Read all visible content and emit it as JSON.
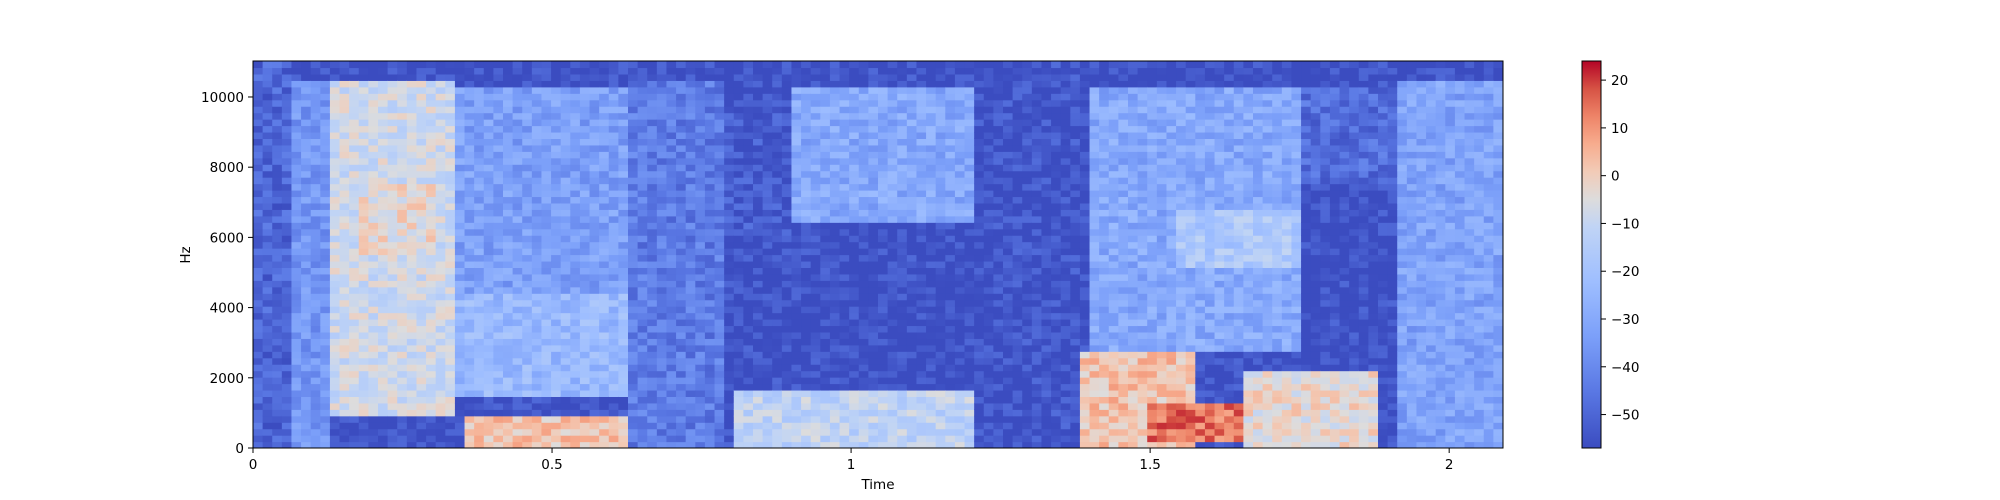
{
  "chart_data": {
    "type": "heatmap",
    "title": "",
    "xlabel": "Time",
    "ylabel": "Hz",
    "xlim": [
      0,
      2.09
    ],
    "ylim": [
      0,
      11025
    ],
    "x_ticks": [
      0,
      0.5,
      1,
      1.5,
      2
    ],
    "x_tick_labels": [
      "0",
      "0.5",
      "1",
      "1.5",
      "2"
    ],
    "y_ticks": [
      0,
      2000,
      4000,
      6000,
      8000,
      10000
    ],
    "y_tick_labels": [
      "0",
      "2000",
      "4000",
      "6000",
      "8000",
      "10000"
    ],
    "colormap": "coolwarm",
    "colorbar": {
      "vmin": -57,
      "vmax": 24,
      "ticks": [
        -50,
        -40,
        -30,
        -20,
        -10,
        0,
        10,
        20
      ],
      "tick_labels": [
        "−50",
        "−40",
        "−30",
        "−20",
        "−10",
        "0",
        "10",
        "20"
      ]
    },
    "regions_db": [
      {
        "t": [
          0.0,
          0.06
        ],
        "f": [
          0,
          11025
        ],
        "db": -50
      },
      {
        "t": [
          0.06,
          0.13
        ],
        "f": [
          0,
          10500
        ],
        "db": -36
      },
      {
        "t": [
          0.13,
          0.33
        ],
        "f": [
          1000,
          10500
        ],
        "db": -8
      },
      {
        "t": [
          0.17,
          0.3
        ],
        "f": [
          5500,
          7500
        ],
        "db": -3
      },
      {
        "t": [
          0.33,
          0.63
        ],
        "f": [
          4500,
          10300
        ],
        "db": -33
      },
      {
        "t": [
          0.33,
          0.63
        ],
        "f": [
          1500,
          4500
        ],
        "db": -24
      },
      {
        "t": [
          0.35,
          0.62
        ],
        "f": [
          0,
          900
        ],
        "db": 2
      },
      {
        "t": [
          0.63,
          0.78
        ],
        "f": [
          0,
          10500
        ],
        "db": -44
      },
      {
        "t": [
          0.78,
          0.92
        ],
        "f": [
          6000,
          9500
        ],
        "db": -53
      },
      {
        "t": [
          0.9,
          1.2
        ],
        "f": [
          6500,
          10300
        ],
        "db": -30
      },
      {
        "t": [
          0.8,
          1.2
        ],
        "f": [
          0,
          1700
        ],
        "db": -12
      },
      {
        "t": [
          1.23,
          1.39
        ],
        "f": [
          0,
          11025
        ],
        "db": -55
      },
      {
        "t": [
          1.39,
          1.57
        ],
        "f": [
          0,
          2700
        ],
        "db": 2
      },
      {
        "t": [
          1.5,
          1.65
        ],
        "f": [
          200,
          1200
        ],
        "db": 14
      },
      {
        "t": [
          1.4,
          1.75
        ],
        "f": [
          2700,
          10300
        ],
        "db": -30
      },
      {
        "t": [
          1.55,
          1.75
        ],
        "f": [
          5200,
          6800
        ],
        "db": -17
      },
      {
        "t": [
          1.65,
          1.88
        ],
        "f": [
          0,
          2200
        ],
        "db": -3
      },
      {
        "t": [
          1.75,
          1.92
        ],
        "f": [
          7500,
          10300
        ],
        "db": -48
      },
      {
        "t": [
          1.92,
          2.09
        ],
        "f": [
          0,
          10500
        ],
        "db": -32
      }
    ]
  }
}
